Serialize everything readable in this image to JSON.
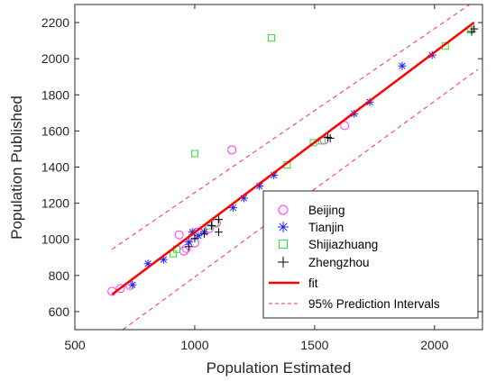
{
  "chart_data": {
    "type": "scatter",
    "xlabel": "Population Estimated",
    "ylabel": "Population Published",
    "xlim": [
      500,
      2200
    ],
    "ylim": [
      500,
      2300
    ],
    "xticks": [
      500,
      1000,
      1500,
      2000
    ],
    "yticks": [
      600,
      800,
      1000,
      1200,
      1400,
      1600,
      1800,
      2000,
      2200
    ],
    "grid": false,
    "legend_position": "bottom-right",
    "series": [
      {
        "name": "Beijing",
        "marker": "circle",
        "color": "#ff33ff",
        "points": [
          [
            655,
            712
          ],
          [
            690,
            728
          ],
          [
            730,
            745
          ],
          [
            935,
            1025
          ],
          [
            955,
            935
          ],
          [
            965,
            950
          ],
          [
            1000,
            980
          ],
          [
            1010,
            1040
          ],
          [
            1060,
            1060
          ],
          [
            1090,
            1090
          ],
          [
            1155,
            1495
          ],
          [
            1540,
            1550
          ],
          [
            1625,
            1630
          ]
        ]
      },
      {
        "name": "Tianjin",
        "marker": "asterisk",
        "color": "#2222ff",
        "points": [
          [
            740,
            748
          ],
          [
            805,
            865
          ],
          [
            870,
            888
          ],
          [
            975,
            985
          ],
          [
            990,
            1040
          ],
          [
            1015,
            1020
          ],
          [
            1040,
            1040
          ],
          [
            1160,
            1175
          ],
          [
            1205,
            1228
          ],
          [
            1270,
            1295
          ],
          [
            1330,
            1355
          ],
          [
            1665,
            1695
          ],
          [
            1730,
            1760
          ],
          [
            1865,
            1960
          ],
          [
            1990,
            2020
          ]
        ]
      },
      {
        "name": "Shijiazhuang",
        "marker": "square",
        "color": "#33dd33",
        "points": [
          [
            910,
            920
          ],
          [
            925,
            945
          ],
          [
            1000,
            1475
          ],
          [
            1060,
            1075
          ],
          [
            1085,
            1092
          ],
          [
            1320,
            2115
          ],
          [
            1385,
            1412
          ],
          [
            1495,
            1535
          ],
          [
            1530,
            1545
          ],
          [
            2045,
            2070
          ],
          [
            2150,
            2160
          ]
        ]
      },
      {
        "name": "Zhengzhou",
        "marker": "plus",
        "color": "#000000",
        "points": [
          [
            975,
            960
          ],
          [
            1000,
            1005
          ],
          [
            1040,
            1030
          ],
          [
            1070,
            1075
          ],
          [
            1100,
            1040
          ],
          [
            1100,
            1110
          ],
          [
            1555,
            1565
          ],
          [
            1565,
            1560
          ],
          [
            2155,
            2150
          ],
          [
            2165,
            2165
          ]
        ]
      }
    ],
    "fit": {
      "name": "fit",
      "color": "#ff0000",
      "x": [
        655,
        2165
      ],
      "y": [
        695,
        2200
      ]
    },
    "prediction_intervals": {
      "name": "95% Prediction Intervals",
      "color": "#ff3333",
      "upper": {
        "x": [
          655,
          2180
        ],
        "y": [
          945,
          2330
        ]
      },
      "lower": {
        "x": [
          700,
          2180
        ],
        "y": [
          500,
          1940
        ]
      }
    }
  }
}
